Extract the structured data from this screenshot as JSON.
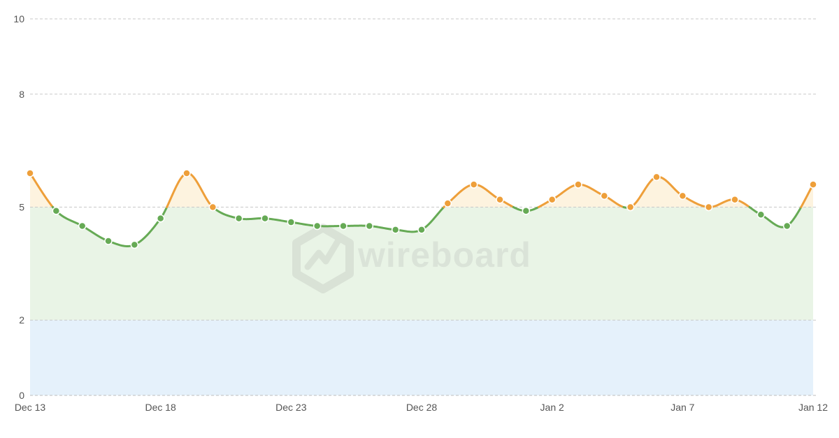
{
  "chart_data": {
    "type": "line",
    "x": [
      "Dec 13",
      "Dec 14",
      "Dec 15",
      "Dec 16",
      "Dec 17",
      "Dec 18",
      "Dec 19",
      "Dec 20",
      "Dec 21",
      "Dec 22",
      "Dec 23",
      "Dec 24",
      "Dec 25",
      "Dec 26",
      "Dec 27",
      "Dec 28",
      "Dec 29",
      "Dec 30",
      "Dec 31",
      "Jan 1",
      "Jan 2",
      "Jan 3",
      "Jan 4",
      "Jan 5",
      "Jan 6",
      "Jan 7",
      "Jan 8",
      "Jan 9",
      "Jan 10",
      "Jan 11",
      "Jan 12"
    ],
    "series": [
      {
        "values": [
          5.9,
          4.9,
          4.5,
          4.1,
          4.0,
          4.7,
          5.9,
          5.0,
          4.7,
          4.7,
          4.6,
          4.5,
          4.5,
          4.5,
          4.4,
          4.4,
          5.1,
          5.6,
          5.2,
          4.9,
          5.2,
          5.6,
          5.3,
          5.0,
          5.8,
          5.3,
          5.0,
          5.2,
          4.8,
          4.5,
          5.6
        ]
      }
    ],
    "x_tick_labels": [
      "Dec 13",
      "Dec 18",
      "Dec 23",
      "Dec 28",
      "Jan 2",
      "Jan 7",
      "Jan 12"
    ],
    "y_ticks": [
      0,
      2,
      5,
      8,
      10
    ],
    "ylim": [
      0,
      10
    ],
    "threshold_high": 5,
    "threshold_low": 2,
    "bands": [
      {
        "from": 0,
        "to": 2,
        "color": "#e5f1fb"
      },
      {
        "from": 2,
        "to": 5,
        "color": "#e9f4e6"
      },
      {
        "from": 5,
        "to": "line",
        "color": "#fdf3df"
      }
    ],
    "colors": {
      "below_line": "#66aa55",
      "above_line": "#ee9f3a",
      "grid": "#c9c9c9"
    },
    "grid": true,
    "title": "",
    "xlabel": "",
    "ylabel": ""
  },
  "watermark": {
    "text": "wireboard",
    "icon": "wireboard-logo-icon"
  }
}
